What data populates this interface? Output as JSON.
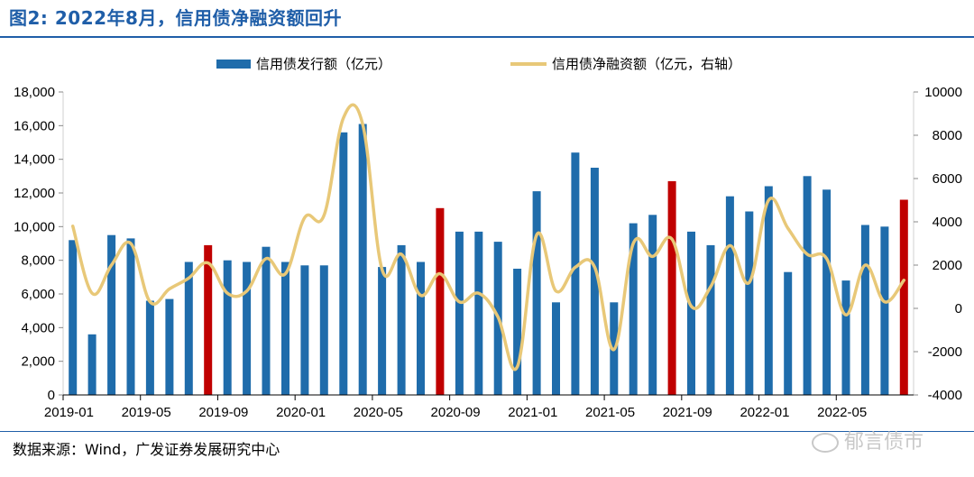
{
  "header": {
    "title": "图2:  2022年8月，信用债净融资额回升"
  },
  "footer": {
    "source": "数据来源：Wind，广发证券发展研究中心",
    "watermark": "郁言债市"
  },
  "colors": {
    "bar": "#1f6cab",
    "highlight": "#c00000",
    "line": "#e8c878",
    "title": "#1f5ea8"
  },
  "chart_data": {
    "type": "bar+line",
    "categories": [
      "2019-01",
      "2019-02",
      "2019-03",
      "2019-04",
      "2019-05",
      "2019-06",
      "2019-07",
      "2019-08",
      "2019-09",
      "2019-10",
      "2019-11",
      "2019-12",
      "2020-01",
      "2020-02",
      "2020-03",
      "2020-04",
      "2020-05",
      "2020-06",
      "2020-07",
      "2020-08",
      "2020-09",
      "2020-10",
      "2020-11",
      "2020-12",
      "2021-01",
      "2021-02",
      "2021-03",
      "2021-04",
      "2021-05",
      "2021-06",
      "2021-07",
      "2021-08",
      "2021-09",
      "2021-10",
      "2021-11",
      "2021-12",
      "2022-01",
      "2022-02",
      "2022-03",
      "2022-04",
      "2022-05",
      "2022-06",
      "2022-07",
      "2022-08"
    ],
    "x_tick_labels": [
      "2019-01",
      "2019-05",
      "2019-09",
      "2020-01",
      "2020-05",
      "2020-09",
      "2021-01",
      "2021-05",
      "2021-09",
      "2022-01",
      "2022-05"
    ],
    "series": [
      {
        "name": "信用债发行额（亿元）",
        "type": "bar",
        "axis": "left",
        "values": [
          9200,
          3600,
          9500,
          9300,
          5600,
          5700,
          7900,
          8900,
          8000,
          7900,
          8800,
          7900,
          7700,
          7700,
          15600,
          16100,
          7600,
          8900,
          7900,
          11100,
          9700,
          9700,
          9100,
          7500,
          12100,
          5500,
          14400,
          13500,
          5500,
          10200,
          10700,
          12700,
          9700,
          8900,
          11800,
          10900,
          12400,
          7300,
          13000,
          12200,
          6800,
          10100,
          10000,
          11600
        ]
      },
      {
        "name": "信用债净融资额（亿元，右轴）",
        "type": "line",
        "axis": "right",
        "values": [
          3800,
          700,
          2000,
          3000,
          300,
          900,
          1400,
          2100,
          700,
          800,
          2300,
          1600,
          4200,
          4300,
          8800,
          8500,
          1800,
          2500,
          600,
          1600,
          300,
          700,
          -400,
          -2700,
          3400,
          800,
          1900,
          1900,
          -1900,
          3000,
          2400,
          3200,
          100,
          1000,
          2900,
          1200,
          5000,
          3700,
          2500,
          2300,
          -300,
          2000,
          300,
          1300
        ]
      }
    ],
    "highlight_categories": [
      "2019-08",
      "2020-08",
      "2021-08",
      "2022-08"
    ],
    "left_axis": {
      "min": 0,
      "max": 18000,
      "step": 2000,
      "tick_labels": [
        "0",
        "2,000",
        "4,000",
        "6,000",
        "8,000",
        "10,000",
        "12,000",
        "14,000",
        "16,000",
        "18,000"
      ]
    },
    "right_axis": {
      "min": -4000,
      "max": 10000,
      "step": 2000,
      "tick_labels": [
        "-4000",
        "-2000",
        "0",
        "2000",
        "4000",
        "6000",
        "8000",
        "10000"
      ]
    },
    "legend": {
      "position": "top-center"
    },
    "grid": false
  }
}
